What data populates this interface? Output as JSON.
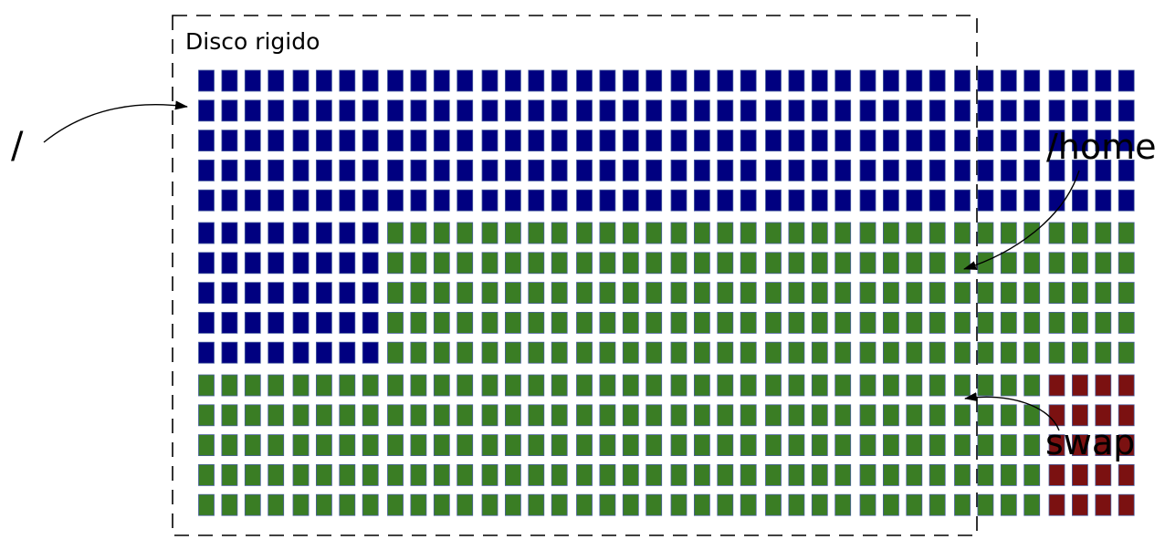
{
  "title": "Disco rigido",
  "partitions": [
    {
      "name": "/",
      "color": "#000080",
      "blocks": 190
    },
    {
      "name": "/home",
      "color": "#3a7d24",
      "blocks": 340
    },
    {
      "name": "swap",
      "color": "#7b1111",
      "blocks": 20
    }
  ],
  "grid": {
    "rows": 15,
    "columns": 40
  },
  "block_border_color": "#4a5fa0",
  "frame_style": "dashed",
  "labels": {
    "root": "/",
    "home": "/home",
    "swap": "swap"
  }
}
